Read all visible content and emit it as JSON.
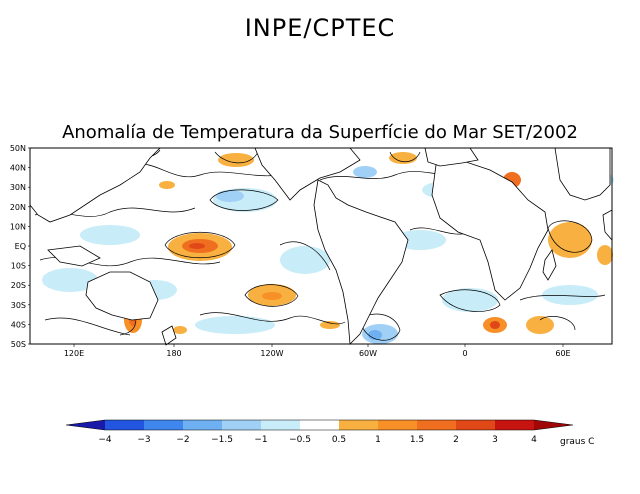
{
  "header": {
    "title": "INPE/CPTEC"
  },
  "map": {
    "title": "Anomalía de Temperatura da Superfície do Mar SET/2002",
    "lat_labels": [
      "50N",
      "40N",
      "30N",
      "20N",
      "10N",
      "EQ",
      "10S",
      "20S",
      "30S",
      "40S",
      "50S"
    ],
    "lon_labels": [
      "120E",
      "180",
      "120W",
      "60W",
      "0",
      "60E"
    ]
  },
  "colorbar": {
    "levels": [
      "-4",
      "-3",
      "-2",
      "-1.5",
      "-1",
      "-0.5",
      "0.5",
      "1",
      "1.5",
      "2",
      "3",
      "4"
    ],
    "unit_label": "graus C",
    "colors": [
      "#1a1aa8",
      "#2255e0",
      "#3f86ee",
      "#6fb0f2",
      "#a0d0f6",
      "#c8ecf8",
      "#ffffff",
      "#f8b040",
      "#f89028",
      "#f06e20",
      "#e04818",
      "#c81410",
      "#a00808"
    ]
  }
}
